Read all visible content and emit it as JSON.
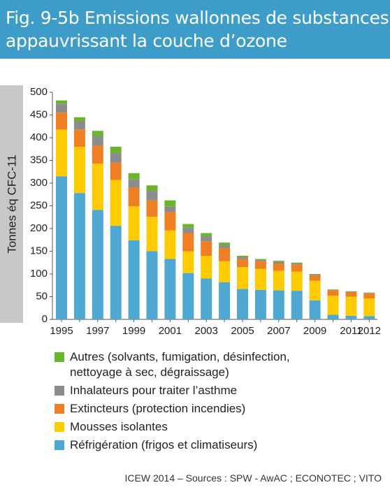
{
  "chart_data": {
    "type": "stacked-bar",
    "title": "Fig. 9-5b Emissions wallonnes de substances\nappauvrissant la couche d’ozone",
    "y_label": "Tonnes éq CFC-11",
    "source": "ICEW 2014 – Sources : SPW - AwAC ; ECONOTEC ; VITO",
    "categories": [
      "1995",
      null,
      "1997",
      null,
      "1999",
      null,
      "2001",
      null,
      "2003",
      null,
      "2005",
      null,
      "2007",
      null,
      "2009",
      null,
      "2011",
      "2012"
    ],
    "series": [
      {
        "name": "Réfrigération (frigos et climatiseurs)",
        "color": "#4ea8d1",
        "values": [
          315,
          278,
          241,
          206,
          174,
          150,
          133,
          102,
          90,
          82,
          67,
          65,
          64,
          63,
          42,
          10,
          8,
          7
        ]
      },
      {
        "name": "Mousses isolantes",
        "color": "#fdcb00",
        "values": [
          103,
          102,
          102,
          101,
          75,
          76,
          63,
          48,
          50,
          46,
          48,
          46,
          43,
          42,
          43,
          42,
          42,
          39
        ]
      },
      {
        "name": "Extincteurs (protection incendies)",
        "color": "#f07e22",
        "values": [
          37,
          38,
          39,
          38,
          41,
          36,
          40,
          40,
          32,
          29,
          18,
          17,
          16,
          16,
          12,
          12,
          10,
          11
        ]
      },
      {
        "name": "Inhalateurs pour traiter l’asthme",
        "color": "#8c8c8c",
        "values": [
          20,
          19,
          21,
          21,
          18,
          21,
          12,
          12,
          11,
          6,
          4,
          3,
          4,
          2,
          2,
          1,
          1,
          1
        ]
      },
      {
        "name": "Autres (solvants, fumigation, désinfection,\nnettoyage à sec, dégraissage)",
        "color": "#6bb42e",
        "values": [
          7,
          8,
          12,
          14,
          14,
          12,
          14,
          8,
          7,
          6,
          3,
          2,
          2,
          2,
          1,
          1,
          1,
          1
        ]
      }
    ],
    "ylim": [
      0,
      500
    ],
    "yticks": [
      0,
      50,
      100,
      150,
      200,
      250,
      300,
      350,
      400,
      450,
      500
    ]
  }
}
